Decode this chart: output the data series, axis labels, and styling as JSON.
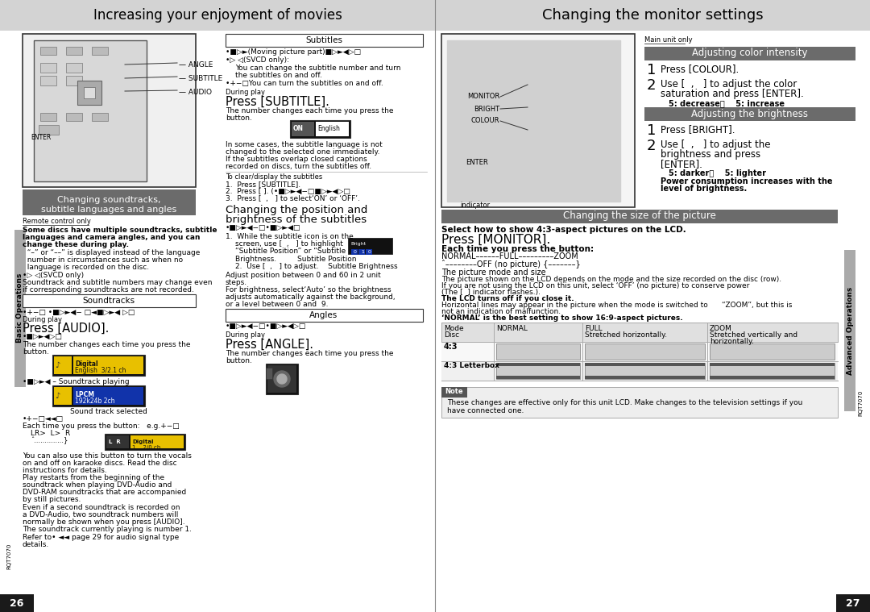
{
  "bg_color": "#ffffff",
  "header_bg": "#d3d3d3",
  "section_bg": "#6b6b6b",
  "section_color": "#ffffff",
  "page_num_bg": "#1a1a1a",
  "sidebar_bg": "#aaaaaa",
  "left_header": "Increasing your enjoyment of movies",
  "right_header": "Changing the monitor settings",
  "left_section": "Changing soundtracks,\nsubtitle languages and angles",
  "right_sec1": "Adjusting color intensity",
  "right_sec2": "Adjusting the brightness",
  "right_sec3": "Changing the size of the picture",
  "page_left": "26",
  "page_right": "27",
  "divider": "#888888",
  "outline": "#333333",
  "light_gray": "#e8e8e8",
  "mid_gray": "#cccccc",
  "dark_gray": "#444444"
}
